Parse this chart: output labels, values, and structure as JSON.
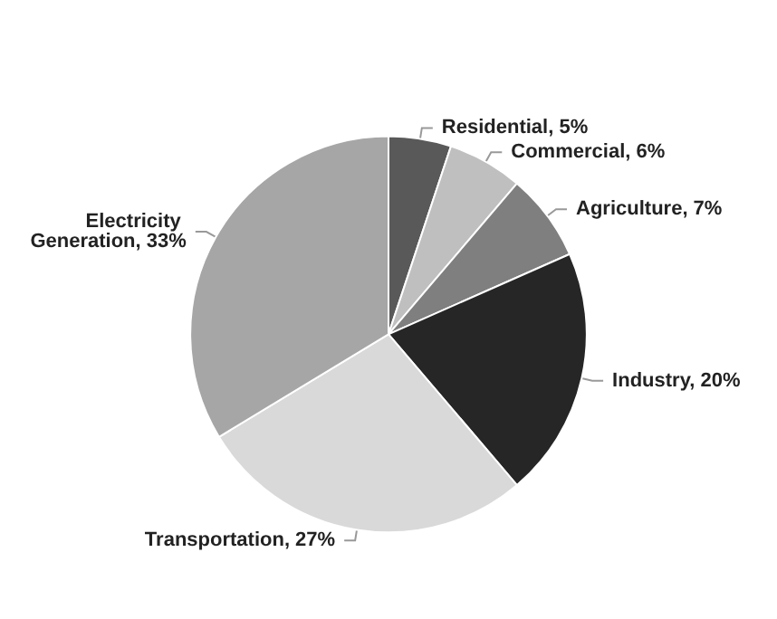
{
  "chart_data": {
    "type": "pie",
    "categories": [
      "Residential",
      "Commercial",
      "Agriculture",
      "Industry",
      "Transportation",
      "Electricity Generation"
    ],
    "values": [
      5,
      6,
      7,
      20,
      27,
      33
    ],
    "value_labels": [
      "5%",
      "6%",
      "7%",
      "20%",
      "27%",
      "33%"
    ],
    "colors": [
      "#595959",
      "#bfbfbf",
      "#7f7f7f",
      "#262626",
      "#d9d9d9",
      "#a6a6a6"
    ],
    "legend": false
  }
}
